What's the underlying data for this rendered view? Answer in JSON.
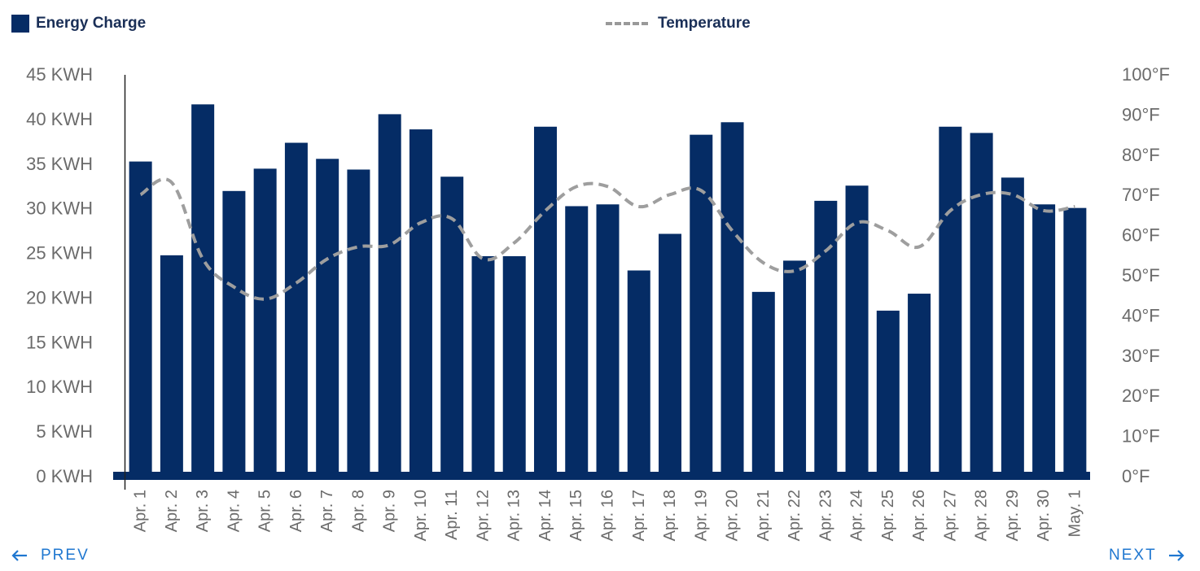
{
  "legend": {
    "bars_label": "Energy Charge",
    "line_label": "Temperature"
  },
  "nav": {
    "prev_label": "PREV",
    "next_label": "NEXT"
  },
  "colors": {
    "bar": "#052c65",
    "line": "#9e9e9e",
    "axis_text": "#6b6b6b",
    "nav": "#1f77d0",
    "legend_text": "#1a2f57"
  },
  "chart_data": {
    "type": "bar",
    "categories": [
      "Apr. 1",
      "Apr. 2",
      "Apr. 3",
      "Apr. 4",
      "Apr. 5",
      "Apr. 6",
      "Apr. 7",
      "Apr. 8",
      "Apr. 9",
      "Apr. 10",
      "Apr. 11",
      "Apr. 12",
      "Apr. 13",
      "Apr. 14",
      "Apr. 15",
      "Apr. 16",
      "Apr. 17",
      "Apr. 18",
      "Apr. 19",
      "Apr. 20",
      "Apr. 21",
      "Apr. 22",
      "Apr. 23",
      "Apr. 24",
      "Apr. 25",
      "Apr. 26",
      "Apr. 27",
      "Apr. 28",
      "Apr. 29",
      "Apr. 30",
      "May. 1"
    ],
    "series": [
      {
        "name": "Energy Charge",
        "type": "bar",
        "axis": "left",
        "values": [
          35.2,
          24.7,
          41.6,
          31.9,
          34.4,
          37.3,
          35.5,
          34.3,
          40.5,
          38.8,
          33.5,
          24.6,
          24.6,
          39.1,
          30.2,
          30.4,
          23.0,
          27.1,
          38.2,
          39.6,
          20.6,
          24.1,
          30.8,
          32.5,
          18.5,
          20.4,
          39.1,
          38.4,
          33.4,
          30.4,
          30.0
        ]
      },
      {
        "name": "Temperature",
        "type": "line",
        "style": "dashed",
        "axis": "right",
        "values": [
          70,
          73,
          54,
          47,
          44,
          48,
          54,
          57,
          57.5,
          63,
          64,
          54,
          58,
          66,
          72,
          72,
          67,
          70,
          71,
          61,
          53,
          51,
          56,
          63,
          61,
          57,
          66,
          70,
          70,
          66,
          67
        ]
      }
    ],
    "left_axis": {
      "ylim": [
        0,
        45
      ],
      "ticks": [
        "0 KWH",
        "5 KWH",
        "10 KWH",
        "15 KWH",
        "20 KWH",
        "25 KWH",
        "30 KWH",
        "35 KWH",
        "40 KWH",
        "45 KWH"
      ]
    },
    "right_axis": {
      "ylim": [
        0,
        100
      ],
      "ticks": [
        "0°F",
        "10°F",
        "20°F",
        "30°F",
        "40°F",
        "50°F",
        "60°F",
        "70°F",
        "80°F",
        "90°F",
        "100°F"
      ]
    },
    "grid": false,
    "legend_position": "top"
  }
}
